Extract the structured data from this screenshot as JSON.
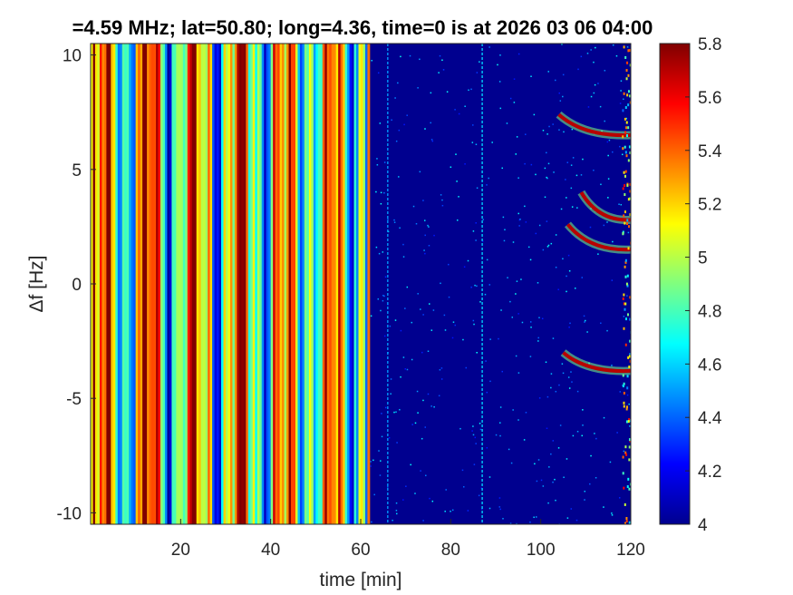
{
  "chart_data": {
    "type": "heatmap",
    "title": "=4.59 MHz;  lat=50.80; long=4.36, time=0 is at 2026 03 06 04:00",
    "xlabel": "time [min]",
    "ylabel": "Δf [Hz]",
    "xlim": [
      0,
      120
    ],
    "ylim": [
      -10.5,
      10.5
    ],
    "xticks": [
      20,
      40,
      60,
      80,
      100,
      120
    ],
    "xtick_labels": [
      "20",
      "40",
      "60",
      "80",
      "100",
      "120"
    ],
    "yticks": [
      10,
      5,
      0,
      -5,
      -10
    ],
    "ytick_labels": [
      "10",
      "5",
      "0",
      "-5",
      "-10"
    ],
    "colorbar": {
      "colormap": "jet",
      "clim": [
        4,
        5.8
      ],
      "ticks": [
        5.8,
        5.6,
        5.4,
        5.2,
        5,
        4.8,
        4.6,
        4.4,
        4.2,
        4
      ],
      "tick_labels": [
        "5.8",
        "5.6",
        "5.4",
        "5.2",
        "5",
        "4.8",
        "4.6",
        "4.4",
        "4.2",
        "4"
      ]
    },
    "regions": [
      {
        "t_start": 0,
        "t_end": 62,
        "level": "high, alternating vertical bands"
      },
      {
        "t_start": 62,
        "t_end": 120,
        "level": "low background ~4.0"
      }
    ],
    "features": [
      {
        "kind": "vertical_line",
        "t": 87,
        "level": 4.6
      },
      {
        "kind": "vertical_line",
        "t": 66,
        "level": 4.5
      },
      {
        "kind": "curved_trace",
        "t_start": 104,
        "t_end": 120,
        "f_start": 7.4,
        "f_end": 6.5
      },
      {
        "kind": "curved_trace",
        "t_start": 106,
        "t_end": 120,
        "f_start": 2.6,
        "f_end": 1.5
      },
      {
        "kind": "curved_trace",
        "t_start": 109,
        "t_end": 120,
        "f_start": 4.0,
        "f_end": 2.8
      },
      {
        "kind": "curved_trace",
        "t_start": 105,
        "t_end": 120,
        "f_start": -3.0,
        "f_end": -3.8
      }
    ]
  },
  "colors": {
    "jet_stops": [
      "#00008f",
      "#0000ff",
      "#00ffff",
      "#ffff00",
      "#ff0000",
      "#800000"
    ],
    "axis": "#262626"
  }
}
